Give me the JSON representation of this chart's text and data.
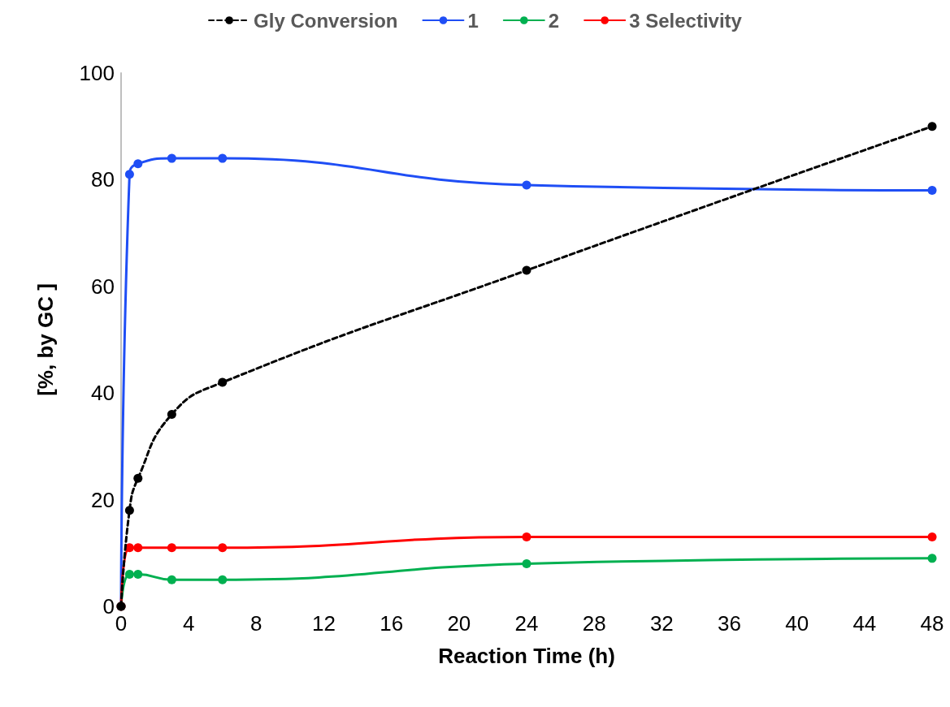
{
  "chart_data": {
    "type": "line",
    "xlabel": "Reaction Time (h)",
    "ylabel": "[%, by GC ]",
    "x": [
      0,
      0.5,
      1,
      3,
      6,
      24,
      48
    ],
    "series": [
      {
        "name": "Gly Conversion",
        "color": "#000000",
        "line_style": "dashed",
        "values": [
          0,
          18,
          24,
          36,
          42,
          63,
          90
        ]
      },
      {
        "name": "1",
        "color": "#1f4ef5",
        "line_style": "solid",
        "values": [
          0,
          81,
          83,
          84,
          84,
          79,
          78
        ]
      },
      {
        "name": "2",
        "color": "#00b050",
        "line_style": "solid",
        "values": [
          0,
          6,
          6,
          5,
          5,
          8,
          9
        ]
      },
      {
        "name": "3 Selectivity",
        "color": "#ff0000",
        "line_style": "solid",
        "values": [
          0,
          11,
          11,
          11,
          11,
          13,
          13
        ]
      }
    ],
    "xlim": [
      0,
      48
    ],
    "xticks": [
      0,
      4,
      8,
      12,
      16,
      20,
      24,
      28,
      32,
      36,
      40,
      44,
      48
    ],
    "ylim": [
      0,
      100
    ],
    "yticks": [
      0,
      20,
      40,
      60,
      80,
      100
    ],
    "grid": false,
    "legend": "top",
    "marker": "circle"
  }
}
